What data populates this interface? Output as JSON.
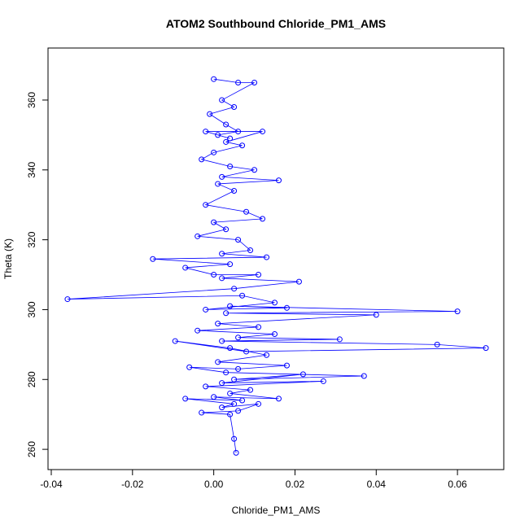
{
  "chart_data": {
    "type": "line",
    "title": "ATOM2 Southbound Chloride_PM1_AMS",
    "x_label": "Chloride_PM1_AMS",
    "y_label": "Theta (K)",
    "color": "#0000ff",
    "x": [
      0.0,
      0.006,
      0.01,
      0.002,
      0.005,
      -0.001,
      0.003,
      0.006,
      0.001,
      0.004,
      -0.002,
      0.012,
      0.003,
      0.007,
      0.0,
      -0.003,
      0.004,
      0.01,
      0.002,
      0.016,
      0.001,
      0.005,
      -0.002,
      0.008,
      0.012,
      0.0,
      0.003,
      -0.004,
      0.006,
      0.009,
      0.002,
      0.013,
      -0.015,
      0.004,
      -0.007,
      0.0,
      0.011,
      0.002,
      0.021,
      0.005,
      -0.036,
      0.007,
      0.015,
      -0.002,
      0.018,
      0.004,
      0.06,
      0.003,
      0.04,
      0.001,
      0.011,
      -0.004,
      0.015,
      0.006,
      0.031,
      0.002,
      0.055,
      0.067,
      0.008,
      -0.0095,
      0.004,
      0.013,
      0.001,
      0.018,
      0.006,
      -0.006,
      0.003,
      0.037,
      0.005,
      0.022,
      0.002,
      0.027,
      -0.002,
      0.009,
      0.004,
      0.016,
      0.0,
      0.007,
      -0.007,
      0.005,
      0.002,
      0.011,
      0.006,
      -0.003,
      0.004,
      0.005,
      0.0055
    ],
    "values": [
      366,
      365,
      365,
      360,
      358,
      356,
      353,
      351,
      350,
      349,
      351,
      351,
      348,
      347,
      345,
      343,
      341,
      340,
      338,
      337,
      336,
      334,
      330,
      328,
      326,
      325,
      323,
      321,
      320,
      317,
      316,
      315,
      314.5,
      313,
      312,
      310,
      310,
      309,
      308,
      306,
      303,
      304,
      302,
      300,
      300.5,
      301,
      299.5,
      299,
      298.5,
      296,
      295,
      294,
      293,
      292,
      291.5,
      291,
      290,
      289,
      288,
      291,
      289,
      287,
      285,
      284,
      283,
      283.5,
      282,
      281,
      280,
      281.5,
      279,
      279.5,
      278,
      277,
      276,
      274.5,
      275,
      274,
      274.5,
      273,
      272,
      273,
      271,
      270.5,
      270,
      263,
      259
    ],
    "xlim": [
      -0.0408,
      0.0714
    ],
    "ylim": [
      254.2,
      374.9
    ],
    "xticks": [
      -0.04,
      -0.02,
      {
        "value": 0,
        "label": "0.00"
      },
      0.02,
      0.04,
      0.06
    ],
    "yticks": [
      260,
      280,
      300,
      320,
      340,
      360
    ]
  }
}
